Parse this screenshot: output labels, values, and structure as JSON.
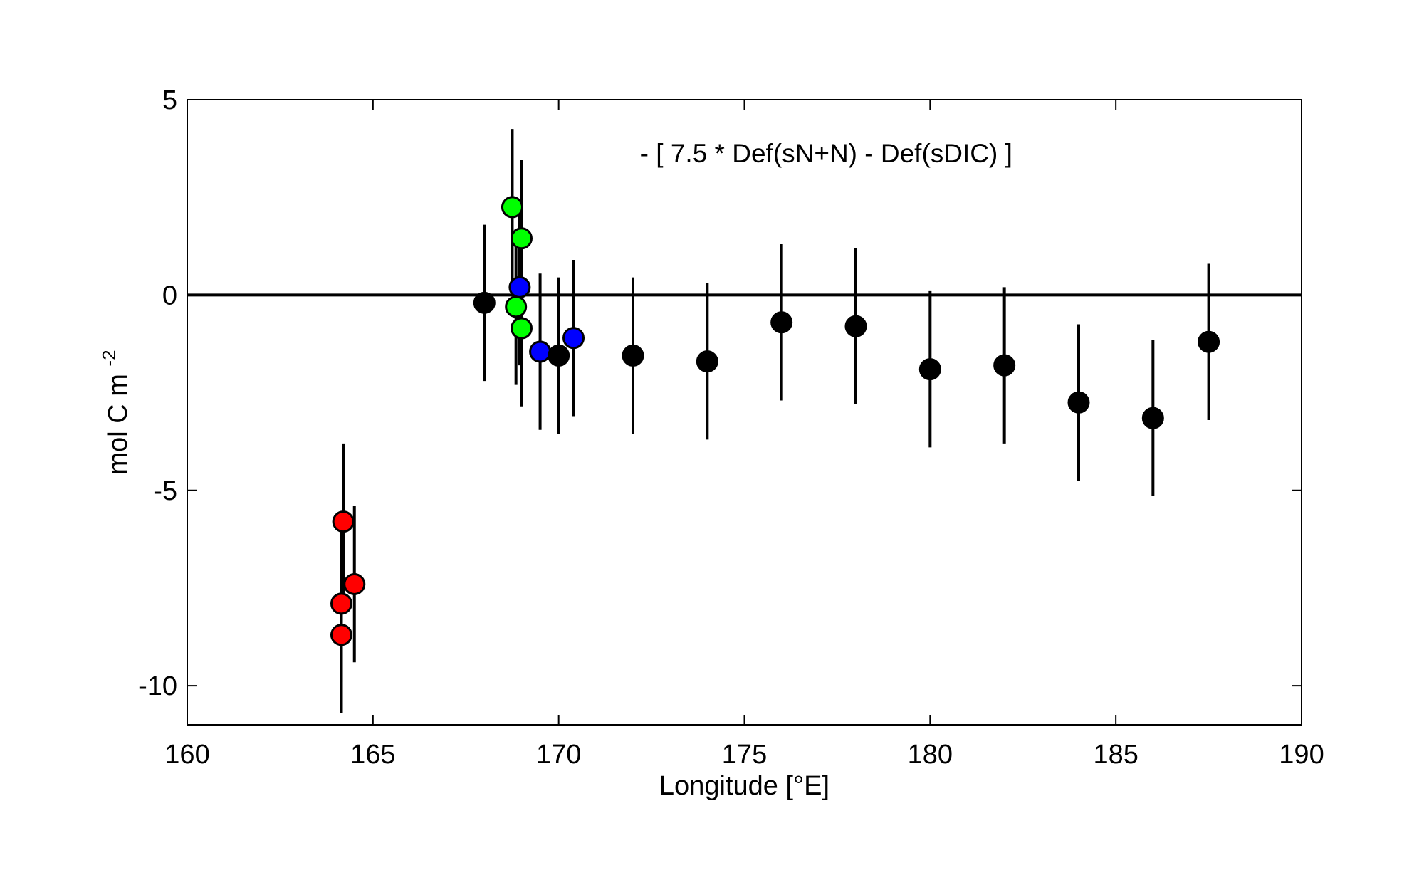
{
  "chart_data": {
    "type": "scatter",
    "title": "",
    "annotation": "- [ 7.5 * Def(sN+N) - Def(sDIC) ]",
    "xlabel": "Longitude [°E]",
    "ylabel": "mol C m",
    "ylabel_superscript": "-2",
    "xlim": [
      160,
      190
    ],
    "ylim": [
      -11,
      5
    ],
    "xticks": [
      160,
      165,
      170,
      175,
      180,
      185,
      190
    ],
    "yticks": [
      5,
      0,
      -5,
      -10
    ],
    "grid": false,
    "reference_line_y": 0,
    "series": [
      {
        "color": "#ff0000",
        "points": [
          {
            "x": 164.2,
            "y": -5.8,
            "err": 2.0
          },
          {
            "x": 164.5,
            "y": -7.4,
            "err": 2.0
          },
          {
            "x": 164.15,
            "y": -7.9,
            "err": 2.0
          },
          {
            "x": 164.15,
            "y": -8.7,
            "err": 2.0
          }
        ]
      },
      {
        "color": "#00ff00",
        "points": [
          {
            "x": 168.75,
            "y": 2.25,
            "err": 2.0
          },
          {
            "x": 169.0,
            "y": 1.45,
            "err": 2.0
          },
          {
            "x": 168.85,
            "y": -0.3,
            "err": 2.0
          },
          {
            "x": 169.0,
            "y": -0.85,
            "err": 2.0
          }
        ]
      },
      {
        "color": "#0000ff",
        "points": [
          {
            "x": 168.95,
            "y": 0.2,
            "err": 2.0
          },
          {
            "x": 169.5,
            "y": -1.45,
            "err": 2.0
          },
          {
            "x": 170.4,
            "y": -1.1,
            "err": 2.0
          }
        ]
      },
      {
        "color": "#000000",
        "points": [
          {
            "x": 168.0,
            "y": -0.2,
            "err": 2.0
          },
          {
            "x": 170.0,
            "y": -1.55,
            "err": 2.0
          },
          {
            "x": 172.0,
            "y": -1.55,
            "err": 2.0
          },
          {
            "x": 174.0,
            "y": -1.7,
            "err": 2.0
          },
          {
            "x": 176.0,
            "y": -0.7,
            "err": 2.0
          },
          {
            "x": 178.0,
            "y": -0.8,
            "err": 2.0
          },
          {
            "x": 180.0,
            "y": -1.9,
            "err": 2.0
          },
          {
            "x": 182.0,
            "y": -1.8,
            "err": 2.0
          },
          {
            "x": 184.0,
            "y": -2.75,
            "err": 2.0
          },
          {
            "x": 186.0,
            "y": -3.15,
            "err": 2.0
          },
          {
            "x": 187.5,
            "y": -1.2,
            "err": 2.0
          }
        ]
      }
    ]
  }
}
